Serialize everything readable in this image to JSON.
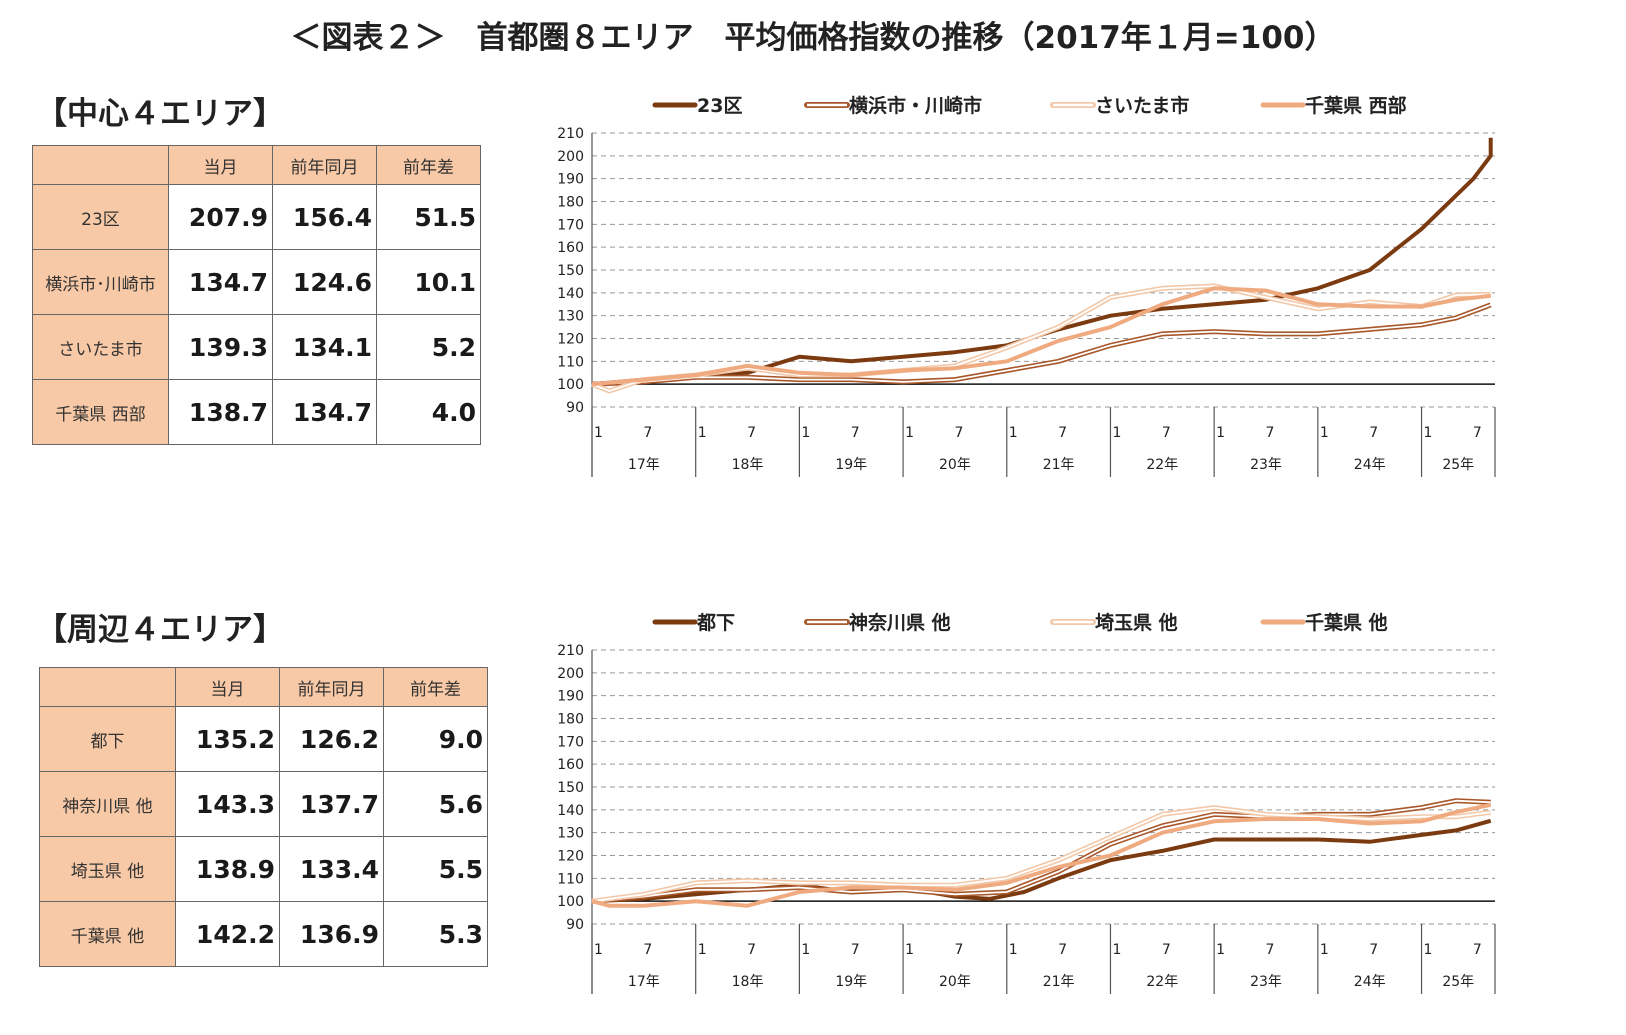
{
  "title": "＜図表２＞　首都圏８エリア　平均価格指数の推移（2017年１月=100）",
  "sections": [
    {
      "title": "【中心４エリア】",
      "table": {
        "headers": [
          "",
          "当月",
          "前年同月",
          "前年差"
        ],
        "rows": [
          {
            "label": "23区",
            "current": "207.9",
            "prev_year": "156.4",
            "diff": "51.5"
          },
          {
            "label": "横浜市･川崎市",
            "current": "134.7",
            "prev_year": "124.6",
            "diff": "10.1"
          },
          {
            "label": "さいたま市",
            "current": "139.3",
            "prev_year": "134.1",
            "diff": "5.2"
          },
          {
            "label": "千葉県 西部",
            "current": "138.7",
            "prev_year": "134.7",
            "diff": "4.0"
          }
        ]
      }
    },
    {
      "title": "【周辺４エリア】",
      "table": {
        "headers": [
          "",
          "当月",
          "前年同月",
          "前年差"
        ],
        "rows": [
          {
            "label": "都下",
            "current": "135.2",
            "prev_year": "126.2",
            "diff": "9.0"
          },
          {
            "label": "神奈川県 他",
            "current": "143.3",
            "prev_year": "137.7",
            "diff": "5.6"
          },
          {
            "label": "埼玉県 他",
            "current": "138.9",
            "prev_year": "133.4",
            "diff": "5.5"
          },
          {
            "label": "千葉県 他",
            "current": "142.2",
            "prev_year": "136.9",
            "diff": "5.3"
          }
        ]
      }
    }
  ],
  "chart_data": [
    {
      "type": "line",
      "ylim": [
        90,
        210
      ],
      "yticks": [
        210,
        200,
        190,
        180,
        170,
        160,
        150,
        140,
        130,
        120,
        110,
        100,
        90
      ],
      "grid": true,
      "legend_position": "top",
      "x_start": "2017-01",
      "x_end": "2025-09",
      "month_tick_labels": [
        "1",
        "7"
      ],
      "year_labels": [
        "17年",
        "18年",
        "19年",
        "20年",
        "21年",
        "22年",
        "23年",
        "24年",
        "25年"
      ],
      "series": [
        {
          "name": "23区",
          "color": "#7b3a10",
          "style": "solid",
          "points": [
            [
              0,
              100
            ],
            [
              6,
              102
            ],
            [
              12,
              104
            ],
            [
              18,
              105
            ],
            [
              24,
              112
            ],
            [
              30,
              110
            ],
            [
              36,
              112
            ],
            [
              42,
              114
            ],
            [
              48,
              117
            ],
            [
              54,
              124
            ],
            [
              60,
              130
            ],
            [
              66,
              133
            ],
            [
              72,
              135
            ],
            [
              78,
              137
            ],
            [
              84,
              142
            ],
            [
              90,
              150
            ],
            [
              96,
              168
            ],
            [
              102,
              190
            ],
            [
              104,
              200
            ],
            [
              104,
              207.9
            ]
          ]
        },
        {
          "name": "横浜市・川崎市",
          "color": "#a8572a",
          "style": "double",
          "points": [
            [
              0,
              100
            ],
            [
              6,
              101
            ],
            [
              12,
              103
            ],
            [
              18,
              103
            ],
            [
              24,
              102
            ],
            [
              30,
              102
            ],
            [
              36,
              101
            ],
            [
              42,
              102
            ],
            [
              48,
              106
            ],
            [
              54,
              110
            ],
            [
              60,
              117
            ],
            [
              66,
              122
            ],
            [
              72,
              123
            ],
            [
              78,
              122
            ],
            [
              84,
              122
            ],
            [
              90,
              124
            ],
            [
              96,
              126
            ],
            [
              100,
              129
            ],
            [
              104,
              134.7
            ]
          ]
        },
        {
          "name": "さいたま市",
          "color": "#f2c8a8",
          "style": "double",
          "points": [
            [
              0,
              100
            ],
            [
              2,
              97
            ],
            [
              6,
              102
            ],
            [
              12,
              104
            ],
            [
              18,
              107
            ],
            [
              24,
              104
            ],
            [
              30,
              104
            ],
            [
              36,
              106
            ],
            [
              42,
              108
            ],
            [
              48,
              116
            ],
            [
              54,
              125
            ],
            [
              60,
              138
            ],
            [
              66,
              142
            ],
            [
              72,
              143
            ],
            [
              78,
              138
            ],
            [
              84,
              133
            ],
            [
              90,
              136
            ],
            [
              96,
              134
            ],
            [
              100,
              139
            ],
            [
              104,
              139.3
            ]
          ]
        },
        {
          "name": "千葉県 西部",
          "color": "#f0aa80",
          "style": "solid",
          "points": [
            [
              0,
              100
            ],
            [
              6,
              102
            ],
            [
              12,
              104
            ],
            [
              18,
              108
            ],
            [
              24,
              105
            ],
            [
              30,
              104
            ],
            [
              36,
              106
            ],
            [
              42,
              107
            ],
            [
              48,
              110
            ],
            [
              54,
              119
            ],
            [
              60,
              125
            ],
            [
              66,
              135
            ],
            [
              72,
              142
            ],
            [
              78,
              141
            ],
            [
              84,
              135
            ],
            [
              90,
              134
            ],
            [
              96,
              134
            ],
            [
              100,
              137
            ],
            [
              104,
              138.7
            ]
          ]
        }
      ]
    },
    {
      "type": "line",
      "ylim": [
        90,
        210
      ],
      "yticks": [
        210,
        200,
        190,
        180,
        170,
        160,
        150,
        140,
        130,
        120,
        110,
        100,
        90
      ],
      "grid": true,
      "legend_position": "top",
      "x_start": "2017-01",
      "x_end": "2025-09",
      "month_tick_labels": [
        "1",
        "7"
      ],
      "year_labels": [
        "17年",
        "18年",
        "19年",
        "20年",
        "21年",
        "22年",
        "23年",
        "24年",
        "25年"
      ],
      "series": [
        {
          "name": "都下",
          "color": "#7b3a10",
          "style": "solid",
          "points": [
            [
              0,
              100
            ],
            [
              6,
              101
            ],
            [
              12,
              103
            ],
            [
              18,
              105
            ],
            [
              24,
              107
            ],
            [
              30,
              104
            ],
            [
              36,
              106
            ],
            [
              42,
              102
            ],
            [
              46,
              101
            ],
            [
              50,
              104
            ],
            [
              54,
              110
            ],
            [
              60,
              118
            ],
            [
              66,
              122
            ],
            [
              72,
              127
            ],
            [
              78,
              127
            ],
            [
              84,
              127
            ],
            [
              90,
              126
            ],
            [
              96,
              129
            ],
            [
              100,
              131
            ],
            [
              104,
              135.2
            ]
          ]
        },
        {
          "name": "神奈川県 他",
          "color": "#a8572a",
          "style": "double",
          "points": [
            [
              0,
              100
            ],
            [
              6,
              102
            ],
            [
              12,
              105
            ],
            [
              18,
              105
            ],
            [
              24,
              106
            ],
            [
              30,
              104
            ],
            [
              36,
              105
            ],
            [
              42,
              103
            ],
            [
              48,
              104
            ],
            [
              54,
              113
            ],
            [
              60,
              125
            ],
            [
              66,
              133
            ],
            [
              72,
              138
            ],
            [
              78,
              137
            ],
            [
              84,
              138
            ],
            [
              90,
              138
            ],
            [
              96,
              141
            ],
            [
              100,
              144
            ],
            [
              104,
              143.3
            ]
          ]
        },
        {
          "name": "埼玉県 他",
          "color": "#f2c8a8",
          "style": "double",
          "points": [
            [
              0,
              100
            ],
            [
              6,
              103
            ],
            [
              12,
              108
            ],
            [
              18,
              109
            ],
            [
              24,
              108
            ],
            [
              30,
              108
            ],
            [
              36,
              107
            ],
            [
              42,
              107
            ],
            [
              48,
              110
            ],
            [
              54,
              118
            ],
            [
              60,
              128
            ],
            [
              66,
              138
            ],
            [
              72,
              141
            ],
            [
              78,
              138
            ],
            [
              84,
              137
            ],
            [
              90,
              136
            ],
            [
              96,
              137
            ],
            [
              100,
              137
            ],
            [
              104,
              138.9
            ]
          ]
        },
        {
          "name": "千葉県 他",
          "color": "#f0aa80",
          "style": "solid",
          "points": [
            [
              0,
              100
            ],
            [
              2,
              98
            ],
            [
              6,
              98
            ],
            [
              12,
              100
            ],
            [
              18,
              98
            ],
            [
              24,
              104
            ],
            [
              30,
              106
            ],
            [
              36,
              106
            ],
            [
              42,
              105
            ],
            [
              48,
              108
            ],
            [
              54,
              115
            ],
            [
              60,
              120
            ],
            [
              66,
              130
            ],
            [
              72,
              135
            ],
            [
              78,
              136
            ],
            [
              84,
              136
            ],
            [
              90,
              134
            ],
            [
              96,
              135
            ],
            [
              100,
              139
            ],
            [
              104,
              142.2
            ]
          ]
        }
      ]
    }
  ]
}
